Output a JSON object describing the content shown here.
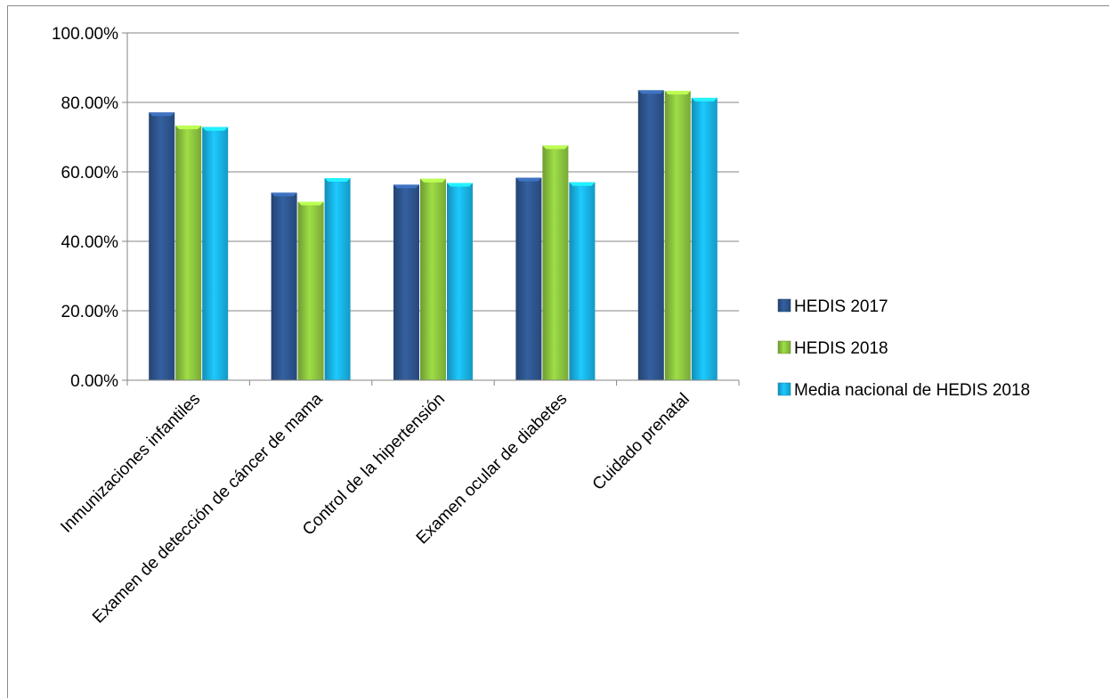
{
  "chart_data": {
    "type": "bar",
    "title": "",
    "xlabel": "",
    "ylabel": "",
    "categories": [
      "Inmunizaciones infantiles",
      "Examen de detección de cáncer de mama",
      "Control de la hipertensión",
      "Examen ocular de diabetes",
      "Cuidado prenatal"
    ],
    "series": [
      {
        "name": "HEDIS 2017",
        "values": [
          77.1,
          54.0,
          56.3,
          58.3,
          83.5
        ],
        "color": "#2e5690"
      },
      {
        "name": "HEDIS 2018",
        "values": [
          73.3,
          51.4,
          58.0,
          67.6,
          83.3
        ],
        "color": "#8dc63f"
      },
      {
        "name": "Media nacional de HEDIS 2018",
        "values": [
          72.9,
          58.2,
          56.8,
          57.0,
          81.3
        ],
        "color": "#19b4e8"
      }
    ],
    "ylim": [
      0,
      100
    ],
    "yticks": [
      "0.00%",
      "20.00%",
      "40.00%",
      "60.00%",
      "80.00%",
      "100.00%"
    ],
    "grid": true,
    "legend_position": "right"
  }
}
